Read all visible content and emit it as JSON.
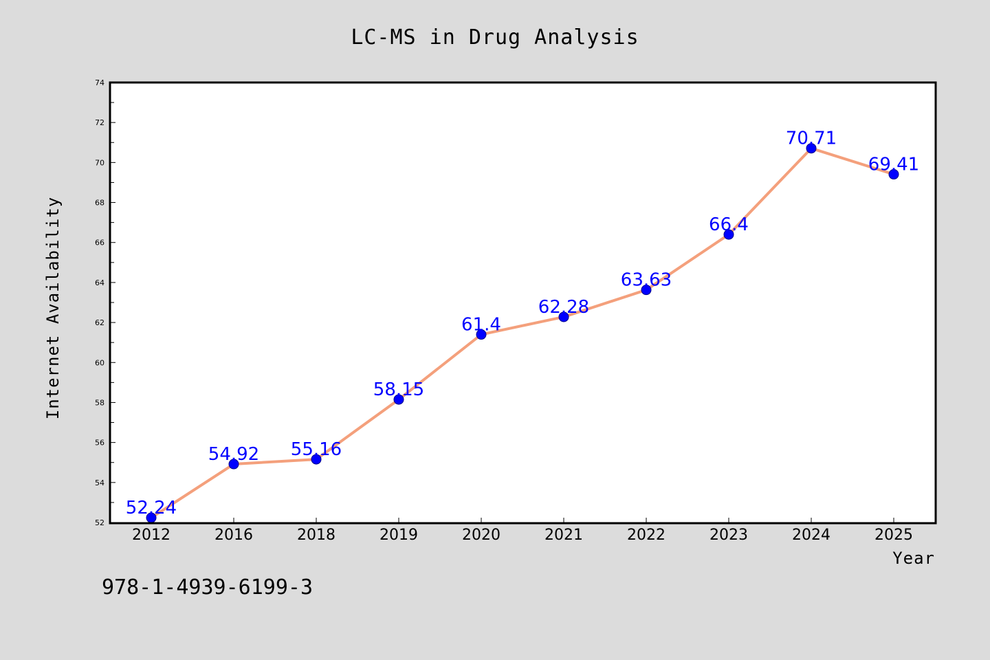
{
  "chart_data": {
    "type": "line",
    "title": "LC-MS in Drug Analysis",
    "xlabel": "Year",
    "ylabel": "Internet Availability",
    "categories": [
      "2012",
      "2016",
      "2018",
      "2019",
      "2020",
      "2021",
      "2022",
      "2023",
      "2024",
      "2025"
    ],
    "values": [
      52.24,
      54.92,
      55.16,
      58.15,
      61.4,
      62.28,
      63.63,
      66.4,
      70.71,
      69.41
    ],
    "data_labels": [
      "52.24",
      "54.92",
      "55.16",
      "58.15",
      "61.4",
      "62.28",
      "63.63",
      "66.4",
      "70.71",
      "69.41"
    ],
    "ylim": [
      52,
      74
    ],
    "yticks": [
      52,
      54,
      56,
      58,
      60,
      62,
      64,
      66,
      68,
      70,
      72,
      74
    ],
    "grid": false,
    "colors": {
      "line": "#f4a07c",
      "marker": "#0000ff",
      "label": "#0000ff",
      "background": "#dcdcdc",
      "plot_bg": "#ffffff"
    }
  },
  "footer": {
    "text": "978-1-4939-6199-3"
  }
}
